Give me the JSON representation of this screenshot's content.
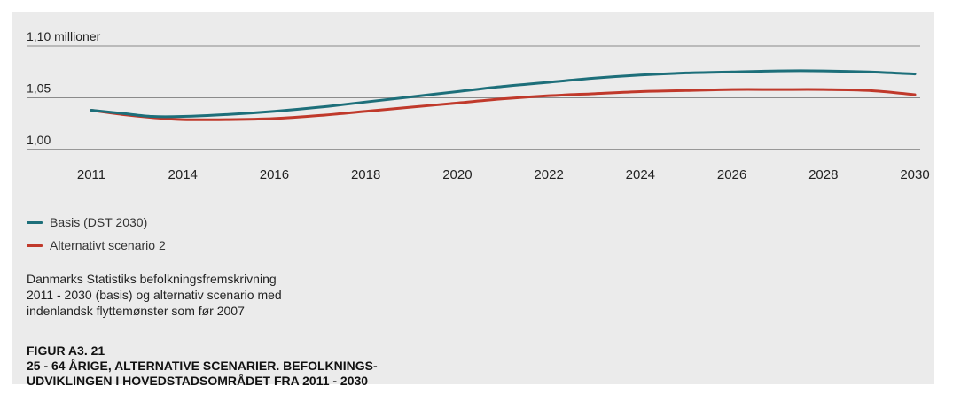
{
  "chart_data": {
    "type": "line",
    "ylabel": "1,10  millioner",
    "ylim": [
      1.0,
      1.1
    ],
    "yticks": [
      {
        "value": 1.1,
        "label": "1,10"
      },
      {
        "value": 1.05,
        "label": "1,05"
      },
      {
        "value": 1.0,
        "label": "1,00"
      }
    ],
    "xticks": [
      2011,
      2014,
      2016,
      2018,
      2020,
      2022,
      2024,
      2026,
      2028,
      2030
    ],
    "grid": true,
    "legend_position": "bottom-left",
    "series": [
      {
        "name": "Basis (DST 2030)",
        "color": "#1d6f7a",
        "x": [
          2011,
          2012,
          2013,
          2014,
          2015,
          2016,
          2017,
          2018,
          2019,
          2020,
          2021,
          2022,
          2023,
          2024,
          2025,
          2026,
          2027,
          2028,
          2029,
          2030
        ],
        "y": [
          1.038,
          1.035,
          1.032,
          1.032,
          1.034,
          1.037,
          1.041,
          1.046,
          1.051,
          1.056,
          1.061,
          1.065,
          1.069,
          1.072,
          1.074,
          1.075,
          1.076,
          1.076,
          1.075,
          1.073
        ]
      },
      {
        "name": "Alternativt scenario 2",
        "color": "#c0392b",
        "x": [
          2011,
          2012,
          2013,
          2014,
          2015,
          2016,
          2017,
          2018,
          2019,
          2020,
          2021,
          2022,
          2023,
          2024,
          2025,
          2026,
          2027,
          2028,
          2029,
          2030
        ],
        "y": [
          1.038,
          1.034,
          1.031,
          1.029,
          1.029,
          1.03,
          1.033,
          1.037,
          1.041,
          1.045,
          1.049,
          1.052,
          1.054,
          1.056,
          1.057,
          1.058,
          1.058,
          1.058,
          1.057,
          1.053
        ]
      }
    ]
  },
  "caption": {
    "line1": "Danmarks Statistiks befolkningsfremskrivning",
    "line2": "2011 - 2030 (basis) og alternativ scenario med",
    "line3": "indenlandsk flyttemønster som før 2007"
  },
  "figure_label": {
    "number": "FIGUR A3. 21",
    "title1": "25 - 64 ÅRIGE, ALTERNATIVE SCENARIER. BEFOLKNINGS-",
    "title2": "UDVIKLINGEN I HOVEDSTADSOMRÅDET FRA 2011 - 2030"
  }
}
